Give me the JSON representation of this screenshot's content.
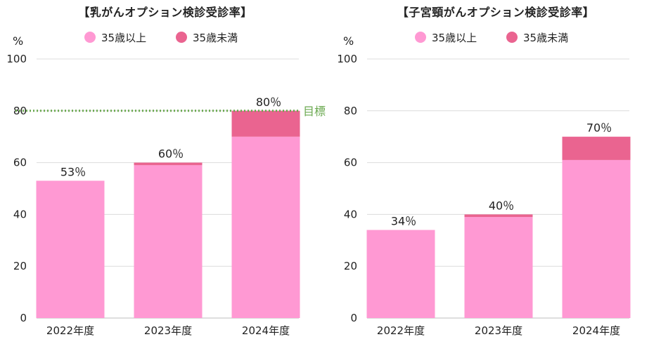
{
  "chart_data": [
    {
      "type": "bar",
      "stacked": true,
      "title": "【乳がんオプション検診受診率】",
      "ylabel": "%",
      "ylim": [
        0,
        100
      ],
      "yticks": [
        0,
        20,
        40,
        60,
        80,
        100
      ],
      "grid": true,
      "legend_position": "top",
      "categories": [
        "2022年度",
        "2023年度",
        "2024年度"
      ],
      "series": [
        {
          "name": "35歳以上",
          "color": "#ff99d3",
          "values": [
            53,
            59,
            70
          ]
        },
        {
          "name": "35歳未満",
          "color": "#ea6490",
          "values": [
            0,
            1,
            10
          ]
        }
      ],
      "data_labels": [
        "53％",
        "60％",
        "80％"
      ],
      "target": {
        "value": 80,
        "label": "目標",
        "color": "#6aa84f"
      }
    },
    {
      "type": "bar",
      "stacked": true,
      "title": "【子宮頸がんオプション検診受診率】",
      "ylabel": "%",
      "ylim": [
        0,
        100
      ],
      "yticks": [
        0,
        20,
        40,
        60,
        80,
        100
      ],
      "grid": true,
      "legend_position": "top",
      "categories": [
        "2022年度",
        "2023年度",
        "2024年度"
      ],
      "series": [
        {
          "name": "35歳以上",
          "color": "#ff99d3",
          "values": [
            34,
            39,
            61
          ]
        },
        {
          "name": "35歳未満",
          "color": "#ea6490",
          "values": [
            0,
            1,
            9
          ]
        }
      ],
      "data_labels": [
        "34％",
        "40％",
        "70％"
      ]
    }
  ]
}
